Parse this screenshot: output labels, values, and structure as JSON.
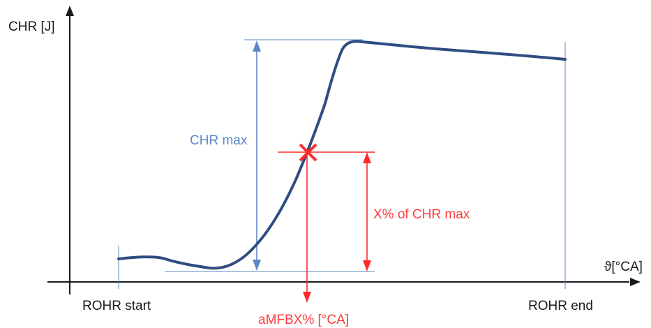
{
  "axes": {
    "y_label": "CHR [J]",
    "x_label": "ϑ[°CA]"
  },
  "labels": {
    "rohr_start": "ROHR start",
    "rohr_end": "ROHR end",
    "chr_max": "CHR max",
    "x_percent": "X% of CHR max",
    "amfbx": "aMFBX% [°CA]"
  },
  "colors": {
    "curve": "#2f4d82",
    "axis": "#1a1a1a",
    "blue_annotation": "#5b87c5",
    "red_annotation": "#ff2a2a",
    "blue_text": "#5b87c5",
    "red_text": "#ff3b3b"
  },
  "icons": {
    "marker": "red-x-marker"
  }
}
